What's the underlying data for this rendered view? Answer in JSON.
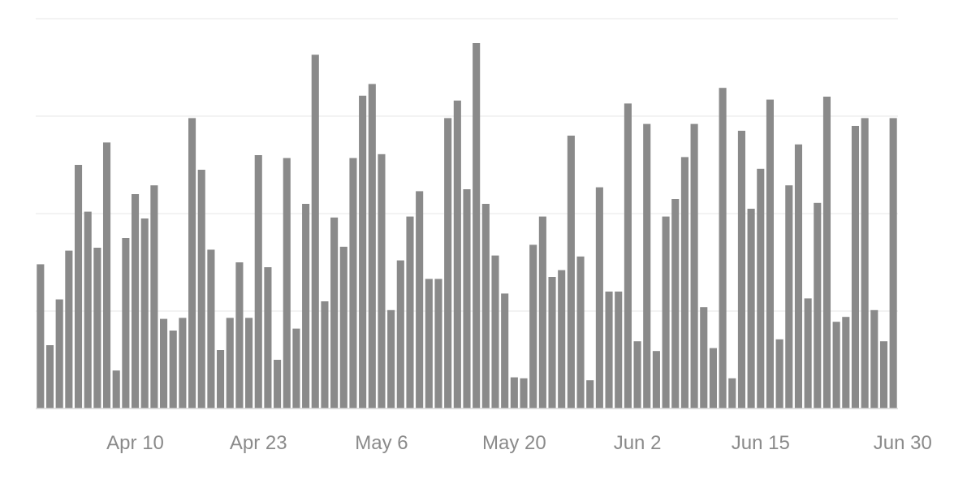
{
  "chart_data": {
    "type": "bar",
    "title": "",
    "xlabel": "",
    "ylabel": "",
    "x_start": "2024-03-31",
    "x_end": "2024-06-30",
    "x_ticks": [
      {
        "date": "2024-04-10",
        "label": "Apr 10"
      },
      {
        "date": "2024-04-23",
        "label": "Apr 23"
      },
      {
        "date": "2024-05-06",
        "label": "May 6"
      },
      {
        "date": "2024-05-20",
        "label": "May 20"
      },
      {
        "date": "2024-06-02",
        "label": "Jun 2"
      },
      {
        "date": "2024-06-15",
        "label": "Jun 15"
      },
      {
        "date": "2024-06-30",
        "label": "Jun 30"
      }
    ],
    "ylim": [
      0,
      400
    ],
    "y_gridlines": [
      0,
      100,
      200,
      300,
      400
    ],
    "y_tick_labels_visible": false,
    "grid": true,
    "bar_color": "#8a8a8a",
    "values": [
      148,
      65,
      112,
      162,
      250,
      202,
      165,
      273,
      39,
      175,
      220,
      195,
      229,
      92,
      80,
      93,
      298,
      245,
      163,
      60,
      93,
      150,
      93,
      260,
      145,
      50,
      257,
      82,
      210,
      363,
      110,
      196,
      166,
      257,
      321,
      333,
      261,
      101,
      152,
      197,
      223,
      133,
      133,
      298,
      316,
      225,
      375,
      210,
      157,
      118,
      32,
      31,
      168,
      197,
      135,
      142,
      280,
      156,
      29,
      227,
      120,
      120,
      313,
      69,
      292,
      59,
      197,
      215,
      258,
      292,
      104,
      62,
      329,
      31,
      285,
      205,
      246,
      317,
      71,
      229,
      271,
      113,
      211,
      320,
      89,
      94,
      290,
      298,
      101,
      69,
      298
    ]
  }
}
